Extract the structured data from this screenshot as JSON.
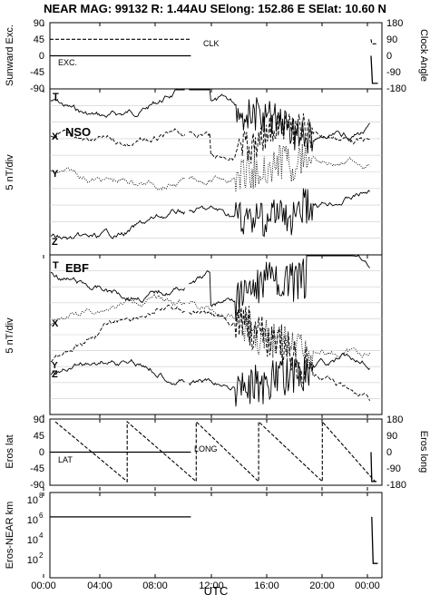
{
  "title": "NEAR MAG: 99132  R: 1.44AU  SElong: 152.86 E  SElat:  10.60 N",
  "xlabel": "UTC",
  "xticks": [
    "00:00",
    "04:00",
    "08:00",
    "12:00",
    "16:00",
    "20:00",
    "00:00"
  ],
  "panels": {
    "p1": {
      "left_label": "Sunward Exc.",
      "right_label": "Clock Angle",
      "left_ticks": [
        "90",
        "45",
        "0",
        "-45",
        "-90"
      ],
      "right_ticks": [
        "180",
        "90",
        "0",
        "-90",
        "-180"
      ],
      "labels": {
        "clk": "CLK",
        "exc": "EXC."
      }
    },
    "p2": {
      "left_label": "5 nT/div",
      "tag": "NSO",
      "labels": {
        "t": "T",
        "x": "X",
        "y": "Y",
        "z": "Z"
      }
    },
    "p3": {
      "left_label": "5 nT/div",
      "tag": "EBF",
      "labels": {
        "t": "T",
        "x": "X",
        "y": "Y",
        "z": "Z"
      }
    },
    "p4": {
      "left_label": "Eros lat",
      "right_label": "Eros long",
      "left_ticks": [
        "90",
        "45",
        "0",
        "-45",
        "-90"
      ],
      "right_ticks": [
        "180",
        "90",
        "0",
        "-90",
        "-180"
      ],
      "labels": {
        "lat": "LAT",
        "long": "LONG"
      }
    },
    "p5": {
      "left_label": "Eros-NEAR km",
      "ticks": [
        "10",
        "10",
        "10",
        "10"
      ],
      "exps": [
        "8",
        "6",
        "4",
        "2"
      ]
    }
  },
  "chart_data": [
    {
      "type": "line",
      "panel": "p1",
      "x_unit": "hours UTC",
      "xlim": [
        0,
        24.5
      ],
      "ylim": [
        -90,
        90
      ],
      "y2lim": [
        -180,
        180
      ],
      "series": [
        {
          "name": "CLK",
          "axis": "right",
          "style": "dashed",
          "x": [
            0,
            10.4,
            10.6,
            23.7,
            23.75,
            24.1
          ],
          "y": [
            90,
            90,
            null,
            90,
            65,
            65
          ]
        },
        {
          "name": "EXC.",
          "axis": "left",
          "style": "solid",
          "x": [
            0,
            10.4,
            10.6,
            23.7,
            23.8,
            24.2
          ],
          "y": [
            0,
            0,
            null,
            0,
            -75,
            -75
          ]
        }
      ]
    },
    {
      "type": "line",
      "panel": "p2",
      "ylabel": "5 nT/div",
      "series": [
        {
          "name": "T",
          "style": "solid",
          "trace": "T"
        },
        {
          "name": "X",
          "style": "dashed",
          "trace": "X"
        },
        {
          "name": "Y",
          "style": "dotted",
          "trace": "Y"
        },
        {
          "name": "Z",
          "style": "solid",
          "trace": "Z"
        }
      ]
    },
    {
      "type": "line",
      "panel": "p3",
      "ylabel": "5 nT/div",
      "series": [
        {
          "name": "T",
          "style": "solid",
          "trace": "T"
        },
        {
          "name": "X",
          "style": "dotted",
          "trace": "X"
        },
        {
          "name": "Y",
          "style": "dashed",
          "trace": "Y"
        },
        {
          "name": "Z",
          "style": "solid",
          "trace": "Z"
        }
      ]
    },
    {
      "type": "line",
      "panel": "p4",
      "xlim": [
        0,
        24.5
      ],
      "ylim": [
        -90,
        90
      ],
      "y2lim": [
        -180,
        180
      ],
      "series": [
        {
          "name": "LAT",
          "axis": "left",
          "style": "solid",
          "x": [
            0,
            10.4,
            10.6,
            23.7,
            23.75,
            24.1
          ],
          "y": [
            0,
            0,
            null,
            0,
            -80,
            -80
          ]
        },
        {
          "name": "LONG",
          "axis": "right",
          "style": "dashed",
          "x": [
            0.4,
            5.7,
            5.7,
            10.8,
            10.8,
            15.4,
            15.4,
            20.1,
            20.1,
            24.0
          ],
          "y": [
            165,
            -160,
            165,
            -160,
            165,
            -160,
            165,
            -160,
            165,
            -160
          ]
        }
      ]
    },
    {
      "type": "line",
      "panel": "p5",
      "yscale": "log",
      "xlim": [
        0,
        24.5
      ],
      "ylim": [
        10,
        100000000
      ],
      "series": [
        {
          "name": "Eros-NEAR km",
          "style": "solid",
          "x": [
            0,
            10.4,
            10.6,
            23.75,
            23.85,
            24.2
          ],
          "y": [
            1000000,
            1000000,
            null,
            1000000,
            150,
            150
          ]
        }
      ]
    }
  ]
}
